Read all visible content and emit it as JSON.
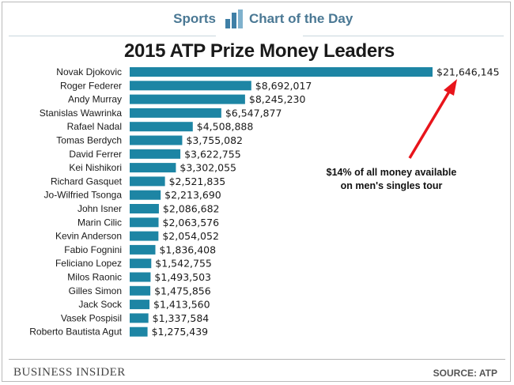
{
  "header": {
    "section": "Sports",
    "series_name": "Chart of the Day"
  },
  "footer": {
    "brand": "Business Insider",
    "source": "SOURCE: ATP"
  },
  "colors": {
    "bar": "#1d85a4",
    "arrow": "#e8141b",
    "header_text": "#4a7894"
  },
  "chart_data": {
    "type": "bar",
    "orientation": "horizontal",
    "title": "2015 ATP Prize Money Leaders",
    "xlabel": "",
    "ylabel": "",
    "xlim": [
      0,
      21646145
    ],
    "grid": false,
    "categories": [
      "Novak Djokovic",
      "Roger Federer",
      "Andy Murray",
      "Stanislas Wawrinka",
      "Rafael Nadal",
      "Tomas Berdych",
      "David Ferrer",
      "Kei Nishikori",
      "Richard Gasquet",
      "Jo-Wilfried Tsonga",
      "John Isner",
      "Marin Cilic",
      "Kevin Anderson",
      "Fabio Fognini",
      "Feliciano Lopez",
      "Milos Raonic",
      "Gilles Simon",
      "Jack Sock",
      "Vasek Pospisil",
      "Roberto Bautista Agut"
    ],
    "values": [
      21646145,
      8692017,
      8245230,
      6547877,
      4508888,
      3755082,
      3622755,
      3302055,
      2521835,
      2213690,
      2086682,
      2063576,
      2054052,
      1836408,
      1542755,
      1493503,
      1475856,
      1413560,
      1337584,
      1275439
    ],
    "value_labels": [
      "$21,646,145",
      "$8,692,017",
      "$8,245,230",
      "$6,547,877",
      "$4,508,888",
      "$3,755,082",
      "$3,622,755",
      "$3,302,055",
      "$2,521,835",
      "$2,213,690",
      "$2,086,682",
      "$2,063,576",
      "$2,054,052",
      "$1,836,408",
      "$1,542,755",
      "$1,493,503",
      "$1,475,856",
      "$1,413,560",
      "$1,337,584",
      "$1,275,439"
    ],
    "annotation": {
      "lines": [
        "$14% of all money available",
        "on men's singles tour"
      ],
      "points_to": "Novak Djokovic"
    }
  }
}
